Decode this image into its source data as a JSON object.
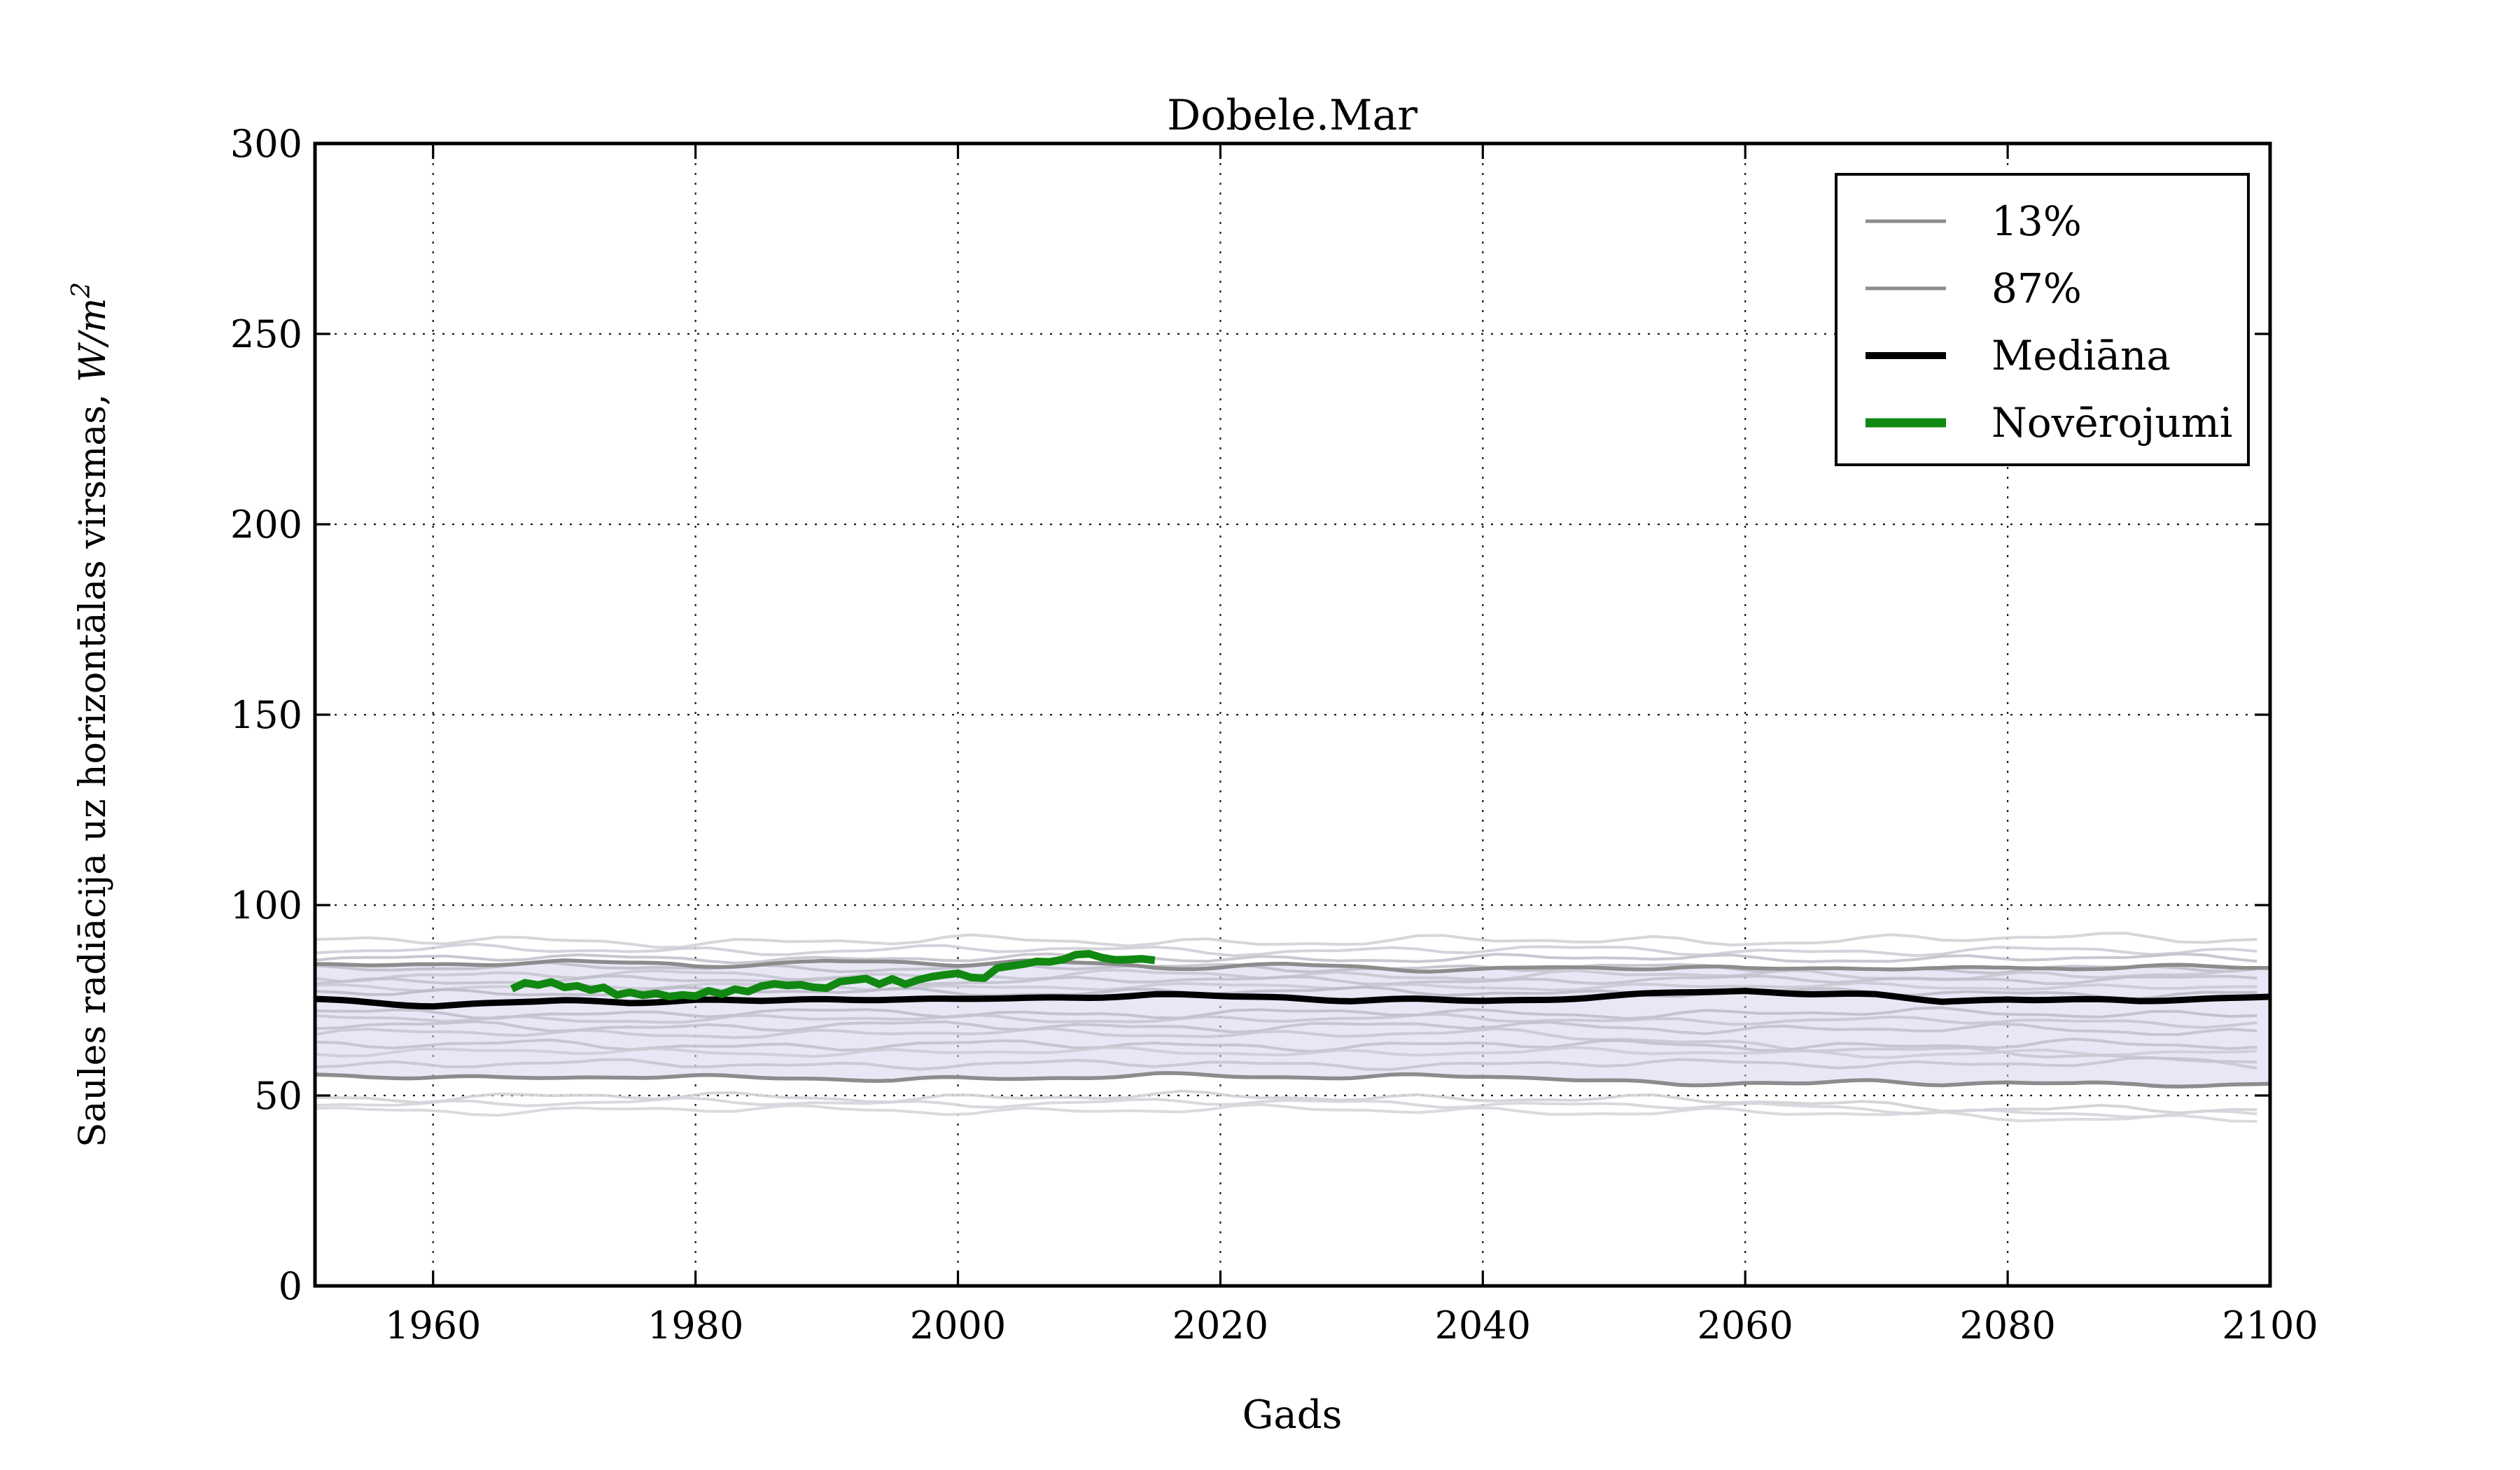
{
  "figure": {
    "title": "Dobele.Mar",
    "background": "#ffffff"
  },
  "axes": {
    "xlabel": "Gads",
    "ylabel_text": "Saules radiācija uz horizontālas virsmas, ",
    "ylabel_math": "W/m",
    "ylabel_sup": "2",
    "x_tick_labels": [
      "1960",
      "1980",
      "2000",
      "2020",
      "2040",
      "2060",
      "2080",
      "2100"
    ],
    "y_tick_labels": [
      "0",
      "50",
      "100",
      "150",
      "200",
      "250",
      "300"
    ],
    "frame_color": "#000000",
    "grid_color": "#000000"
  },
  "legend": {
    "items": [
      {
        "label": "13%",
        "color": "#8c8c8c",
        "lw": 5
      },
      {
        "label": "87%",
        "color": "#8c8c8c",
        "lw": 5
      },
      {
        "label": "Mediāna",
        "color": "#000000",
        "lw": 10
      },
      {
        "label": "Novērojumi",
        "color": "#118811",
        "lw": 13
      }
    ]
  },
  "chart_data": {
    "type": "line",
    "title": "Dobele.Mar",
    "xlabel": "Gads",
    "ylabel": "Saules radiācija uz horizontālas virsmas, W/m2",
    "xlim": [
      1951,
      2100
    ],
    "ylim": [
      0,
      300
    ],
    "xticks": [
      1960,
      1980,
      2000,
      2020,
      2040,
      2060,
      2080,
      2100
    ],
    "yticks": [
      0,
      50,
      100,
      150,
      200,
      250,
      300
    ],
    "grid": true,
    "legend_position": "upper right",
    "band": {
      "between": [
        "13%",
        "87%"
      ],
      "fill": "#d4d4ee",
      "opacity": 0.55
    },
    "series": [
      {
        "name": "13%",
        "color": "#8c8c8c",
        "width": 5.5,
        "jitter": 0.7,
        "seed": 31,
        "x": [
          1951,
          1955,
          1960,
          1965,
          1970,
          1975,
          1980,
          1985,
          1990,
          1995,
          2000,
          2005,
          2010,
          2015,
          2020,
          2025,
          2030,
          2035,
          2040,
          2045,
          2050,
          2055,
          2060,
          2065,
          2070,
          2075,
          2080,
          2085,
          2090,
          2095,
          2100
        ],
        "values": [
          55.2,
          54.7,
          55.0,
          54.6,
          54.9,
          55.3,
          55.0,
          54.5,
          54.2,
          53.9,
          54.3,
          54.7,
          55.1,
          55.6,
          55.3,
          54.8,
          54.4,
          54.9,
          55.2,
          54.6,
          53.8,
          53.2,
          53.5,
          53.1,
          53.4,
          52.9,
          53.3,
          53.0,
          53.4,
          52.8,
          53.1
        ]
      },
      {
        "name": "87%",
        "color": "#8c8c8c",
        "width": 5.5,
        "jitter": 0.7,
        "seed": 47,
        "x": [
          1951,
          1955,
          1960,
          1965,
          1970,
          1975,
          1980,
          1985,
          1990,
          1995,
          2000,
          2005,
          2010,
          2015,
          2020,
          2025,
          2030,
          2035,
          2040,
          2045,
          2050,
          2055,
          2060,
          2065,
          2070,
          2075,
          2080,
          2085,
          2090,
          2095,
          2100
        ],
        "values": [
          84.9,
          84.4,
          84.0,
          84.6,
          85.2,
          84.5,
          83.9,
          84.8,
          85.5,
          85.0,
          84.6,
          85.1,
          84.4,
          83.4,
          83.8,
          84.5,
          84.0,
          83.3,
          83.0,
          83.5,
          83.2,
          83.6,
          83.1,
          83.5,
          83.9,
          83.3,
          83.7,
          83.2,
          83.8,
          83.4,
          83.6
        ]
      },
      {
        "name": "Mediāna",
        "color": "#000000",
        "width": 9,
        "jitter": 0.45,
        "seed": 7,
        "x": [
          1951,
          1955,
          1960,
          1965,
          1970,
          1975,
          1980,
          1985,
          1990,
          1995,
          2000,
          2005,
          2010,
          2015,
          2020,
          2025,
          2030,
          2035,
          2040,
          2045,
          2050,
          2055,
          2060,
          2065,
          2070,
          2075,
          2080,
          2085,
          2090,
          2095,
          2100
        ],
        "values": [
          75.2,
          74.5,
          73.8,
          74.4,
          74.9,
          74.5,
          74.9,
          74.6,
          75.2,
          75.5,
          75.3,
          75.7,
          76.0,
          76.4,
          75.9,
          75.6,
          74.9,
          75.2,
          75.0,
          75.5,
          76.1,
          77.0,
          77.4,
          76.6,
          76.2,
          74.8,
          75.5,
          75.2,
          74.9,
          75.5,
          75.9
        ]
      },
      {
        "name": "Novērojumi",
        "color": "#118811",
        "width": 11,
        "jitter": 0,
        "seed": 0,
        "x": [
          1966,
          1967,
          1968,
          1969,
          1970,
          1971,
          1972,
          1973,
          1974,
          1975,
          1976,
          1977,
          1978,
          1979,
          1980,
          1981,
          1982,
          1983,
          1984,
          1985,
          1986,
          1987,
          1988,
          1989,
          1990,
          1991,
          1992,
          1993,
          1994,
          1995,
          1996,
          1997,
          1998,
          1999,
          2000,
          2001,
          2002,
          2003,
          2004,
          2005,
          2006,
          2007,
          2008,
          2009,
          2010,
          2011,
          2012,
          2013,
          2014,
          2015
        ],
        "values": [
          78.0,
          79.6,
          79.0,
          79.8,
          78.4,
          78.8,
          77.7,
          78.4,
          76.4,
          77.1,
          76.3,
          76.8,
          76.0,
          76.4,
          76.1,
          77.5,
          76.6,
          77.9,
          77.3,
          78.7,
          79.3,
          78.9,
          79.1,
          78.4,
          78.2,
          79.9,
          80.3,
          80.7,
          79.2,
          80.6,
          79.2,
          80.4,
          81.2,
          81.7,
          82.1,
          81.0,
          80.8,
          83.5,
          84.0,
          84.5,
          85.2,
          85.1,
          85.7,
          87.0,
          87.2,
          86.2,
          85.6,
          85.7,
          85.9,
          85.5
        ]
      }
    ],
    "ensemble_members": [
      {
        "base": 90.5,
        "amp": 1.6,
        "seed": 1,
        "drop": 1.0,
        "color": "#d2d2d8",
        "opacity": 0.9,
        "width": 4
      },
      {
        "base": 88.2,
        "amp": 1.4,
        "seed": 2,
        "drop": -0.5,
        "color": "#cccad4",
        "opacity": 0.85,
        "width": 4
      },
      {
        "base": 86.0,
        "amp": 1.2,
        "seed": 3,
        "drop": 0.0,
        "color": "#c2c2cc",
        "opacity": 0.9,
        "width": 4
      },
      {
        "base": 83.6,
        "amp": 1.2,
        "seed": 4,
        "drop": -0.5,
        "color": "#bcbcc8",
        "opacity": 0.85,
        "width": 4
      },
      {
        "base": 81.6,
        "amp": 1.5,
        "seed": 5,
        "drop": 0.0,
        "color": "#c6c6d0",
        "opacity": 0.85,
        "width": 4
      },
      {
        "base": 80.2,
        "amp": 1.2,
        "seed": 6,
        "drop": 0.5,
        "color": "#bebec8",
        "opacity": 0.8,
        "width": 4
      },
      {
        "base": 78.6,
        "amp": 1.0,
        "seed": 7,
        "drop": 0.0,
        "color": "#c8c8d2",
        "opacity": 0.85,
        "width": 4
      },
      {
        "base": 77.2,
        "amp": 1.3,
        "seed": 8,
        "drop": -0.5,
        "color": "#b8b8c4",
        "opacity": 0.8,
        "width": 4
      },
      {
        "base": 71.6,
        "amp": 1.4,
        "seed": 9,
        "drop": 0.0,
        "color": "#bcbcc8",
        "opacity": 0.85,
        "width": 4
      },
      {
        "base": 70.1,
        "amp": 1.2,
        "seed": 10,
        "drop": -1.0,
        "color": "#c4c4ce",
        "opacity": 0.85,
        "width": 4
      },
      {
        "base": 68.2,
        "amp": 1.5,
        "seed": 11,
        "drop": -1.5,
        "color": "#bebec8",
        "opacity": 0.8,
        "width": 4
      },
      {
        "base": 66.3,
        "amp": 1.3,
        "seed": 12,
        "drop": -8.0,
        "color": "#c6c6d0",
        "opacity": 0.85,
        "width": 4
      },
      {
        "base": 63.2,
        "amp": 1.5,
        "seed": 13,
        "drop": 0.0,
        "color": "#c0c0ca",
        "opacity": 0.85,
        "width": 4
      },
      {
        "base": 61.4,
        "amp": 1.2,
        "seed": 14,
        "drop": -0.5,
        "color": "#cacad2",
        "opacity": 0.8,
        "width": 4
      },
      {
        "base": 58.2,
        "amp": 1.3,
        "seed": 15,
        "drop": 0.5,
        "color": "#c4c4ce",
        "opacity": 0.85,
        "width": 4
      },
      {
        "base": 49.6,
        "amp": 1.4,
        "seed": 16,
        "drop": -4.0,
        "color": "#d0d0d6",
        "opacity": 0.9,
        "width": 4
      },
      {
        "base": 48.1,
        "amp": 1.2,
        "seed": 17,
        "drop": -3.5,
        "color": "#d4d4da",
        "opacity": 0.9,
        "width": 4
      },
      {
        "base": 46.2,
        "amp": 1.3,
        "seed": 18,
        "drop": -2.5,
        "color": "#d6d6dc",
        "opacity": 0.9,
        "width": 4
      }
    ]
  }
}
